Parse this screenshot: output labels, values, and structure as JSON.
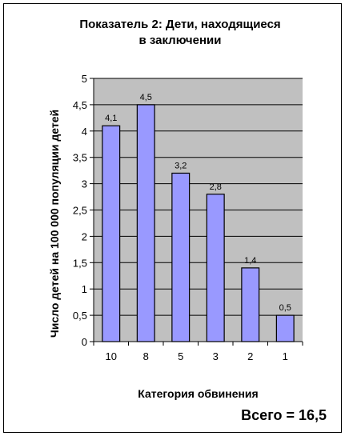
{
  "chart_data": {
    "type": "bar",
    "title_line1": "Показатель 2: Дети, находящиеся",
    "title_line2": "в заключении",
    "ylabel": "Число детей на 100 000 популяции детей",
    "xlabel": "Категория обвинения",
    "categories": [
      "10",
      "8",
      "5",
      "3",
      "2",
      "1"
    ],
    "values": [
      4.1,
      4.5,
      3.2,
      2.8,
      1.4,
      0.5
    ],
    "value_labels": [
      "4,1",
      "4,5",
      "3,2",
      "2,8",
      "1,4",
      "0,5"
    ],
    "ylim": [
      0,
      5
    ],
    "yticks": [
      0,
      0.5,
      1,
      1.5,
      2,
      2.5,
      3,
      3.5,
      4,
      4.5,
      5
    ],
    "ytick_labels": [
      "0",
      "0,5",
      "1",
      "1,5",
      "2",
      "2,5",
      "3",
      "3,5",
      "4",
      "4,5",
      "5"
    ],
    "grid": true,
    "colors": {
      "bar": "#9999ff",
      "plot_bg": "#c0c0c0",
      "edge": "#000000"
    },
    "total_text": "Всего = 16,5"
  }
}
